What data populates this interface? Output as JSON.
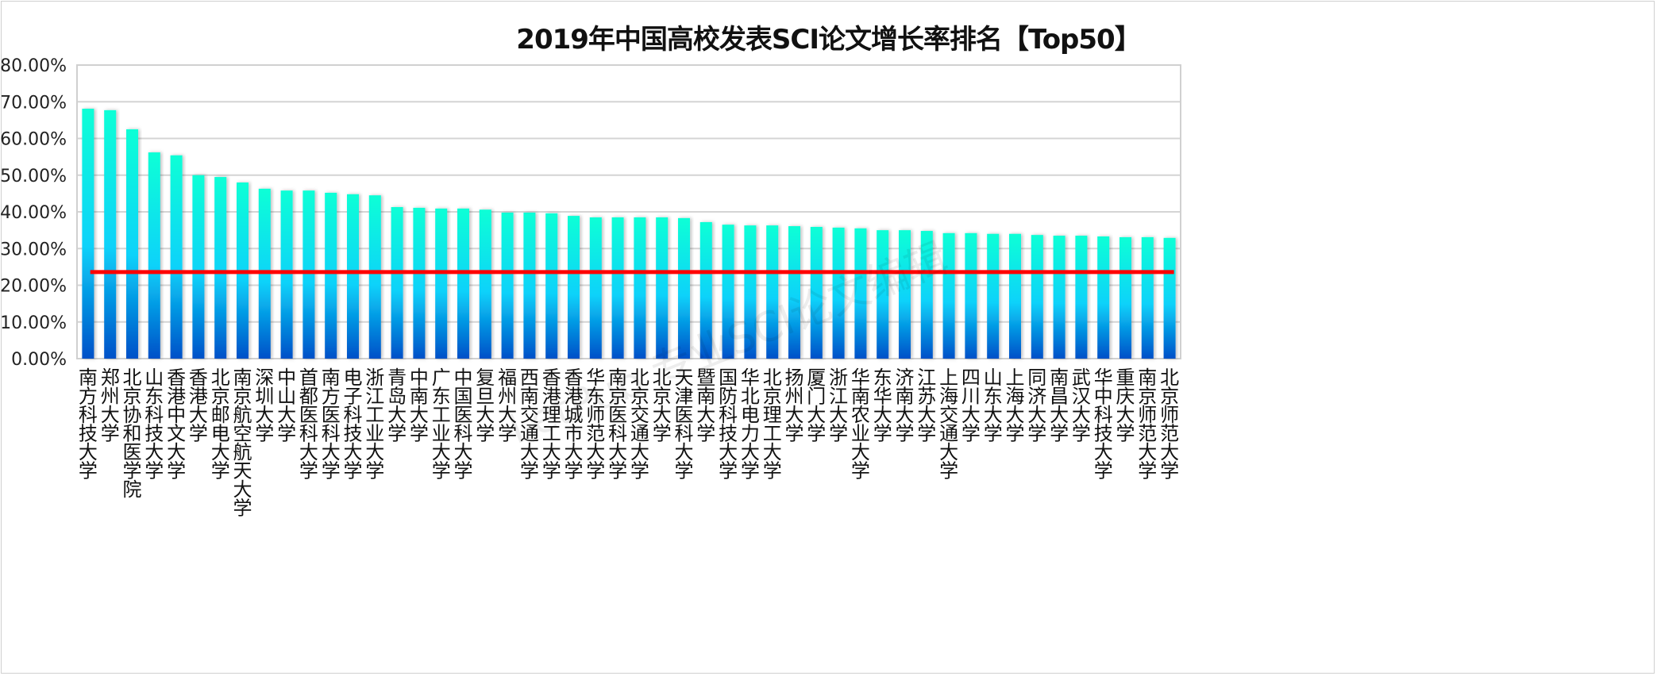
{
  "chart_data": {
    "type": "bar",
    "title": "2019年中国高校发表SCI论文增长率排名【Top50】",
    "xlabel": "",
    "ylabel": "",
    "ylim": [
      0,
      80
    ],
    "ytick_values": [
      0,
      10,
      20,
      30,
      40,
      50,
      60,
      70,
      80
    ],
    "ytick_labels": [
      "0.00%",
      "10.00%",
      "20.00%",
      "30.00%",
      "40.00%",
      "50.00%",
      "60.00%",
      "70.00%",
      "80.00%"
    ],
    "grid": true,
    "legend": "none",
    "categories": [
      "南方科技大学",
      "郑州大学",
      "北京协和医学院",
      "山东科技大学",
      "香港中文大学",
      "香港大学",
      "北京邮电大学",
      "南京航空航天大学",
      "深圳大学",
      "中山大学",
      "首都医科大学",
      "南方医科大学",
      "电子科技大学",
      "浙江工业大学",
      "青岛大学",
      "中南大学",
      "广东工业大学",
      "中国医科大学",
      "复旦大学",
      "福州大学",
      "西南交通大学",
      "香港理工大学",
      "香港城市大学",
      "华东师范大学",
      "南京医科大学",
      "北京交通大学",
      "北京大学",
      "天津医科大学",
      "暨南大学",
      "国防科技大学",
      "华北电力大学",
      "北京理工大学",
      "扬州大学",
      "厦门大学",
      "浙江大学",
      "华南农业大学",
      "东华大学",
      "济南大学",
      "江苏大学",
      "上海交通大学",
      "四川大学",
      "山东大学",
      "上海大学",
      "同济大学",
      "南昌大学",
      "武汉大学",
      "华中科技大学",
      "重庆大学",
      "南京师范大学",
      "北京师范大学"
    ],
    "series": [
      {
        "name": "增长率",
        "values": [
          68.1,
          67.7,
          62.5,
          56.2,
          55.4,
          50.0,
          49.5,
          48.0,
          46.3,
          45.8,
          45.8,
          45.2,
          44.8,
          44.5,
          41.3,
          41.1,
          40.9,
          40.9,
          40.6,
          39.8,
          39.8,
          39.6,
          38.9,
          38.5,
          38.5,
          38.5,
          38.5,
          38.3,
          37.2,
          36.5,
          36.3,
          36.3,
          36.1,
          35.9,
          35.7,
          35.5,
          35.0,
          35.0,
          34.8,
          34.2,
          34.2,
          34.0,
          34.0,
          33.7,
          33.5,
          33.5,
          33.3,
          33.1,
          33.1,
          32.9
        ]
      }
    ],
    "reference_line": {
      "value": 23.6
    },
    "colors": {
      "bar_top": "#0affd6",
      "bar_mid": "#0ad2fa",
      "bar_bottom": "#0050c8",
      "reference_line": "#ff0000",
      "grid": "#d4d4d4"
    }
  },
  "watermark": "LetPub 专业SCI论文编辑"
}
